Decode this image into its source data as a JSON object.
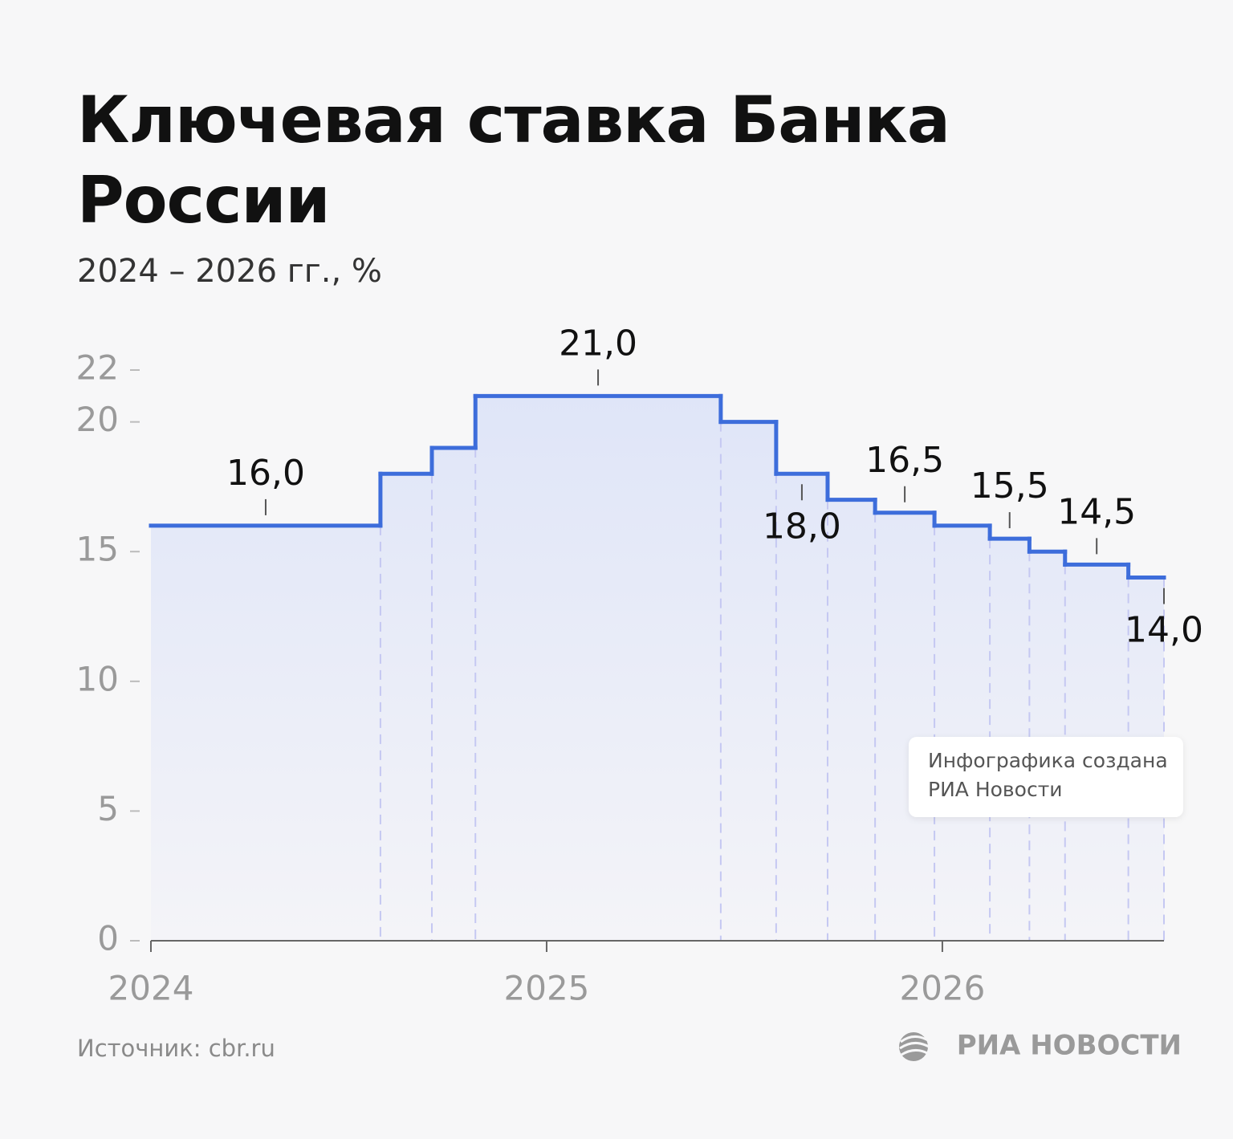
{
  "chart_data": {
    "type": "step",
    "title": "Ключевая ставка Банка России",
    "subtitle": "2024 – 2026 гг., %",
    "series": [
      {
        "color": "#3d6ddb",
        "x": [
          2024,
          2024.58,
          2024.71,
          2024.82,
          2025.44,
          2025.58,
          2025.71,
          2025.83,
          2025.98,
          2026.12,
          2026.22,
          2026.31,
          2026.47
        ],
        "values": [
          16,
          18,
          19,
          21,
          20,
          18,
          17,
          16.5,
          16,
          15.5,
          15,
          14.5,
          14
        ],
        "value_labels": [
          "16,0",
          null,
          null,
          "21,0",
          null,
          "18,0",
          null,
          "16,5",
          null,
          "15,5",
          null,
          "14,5",
          "14,0"
        ]
      }
    ],
    "xlim": [
      2024,
      2026.56
    ],
    "xticks": [
      2024,
      2025,
      2026
    ],
    "ylim": [
      0,
      22
    ],
    "yticks": [
      0,
      5,
      10,
      15,
      20,
      22
    ],
    "note": "Инфографика создана РИА Новости",
    "source": "Источник: cbr.ru",
    "logo": "РИА НОВОСТИ"
  }
}
